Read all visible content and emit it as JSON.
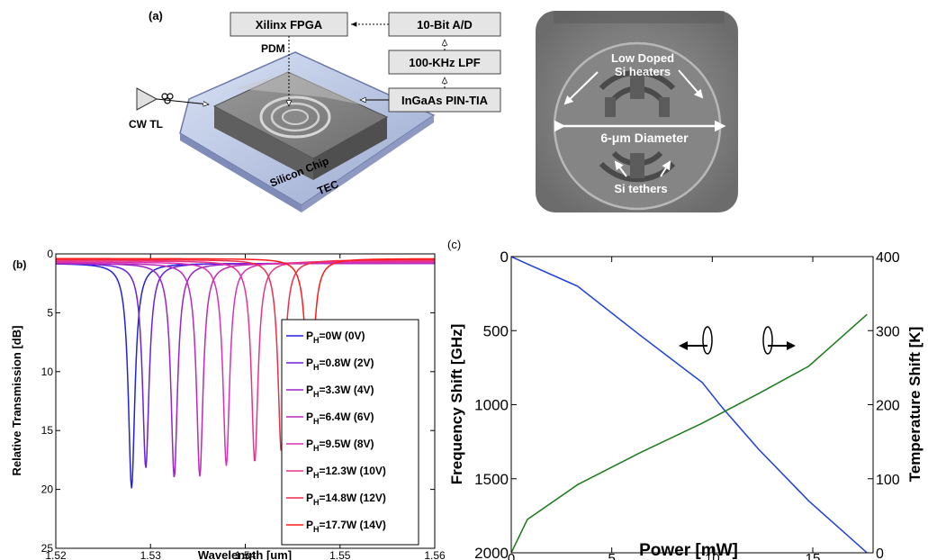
{
  "panel_a": {
    "label": "(a)",
    "boxes": {
      "fpga": "Xilinx FPGA",
      "adc": "10-Bit A/D",
      "lpf": "100-KHz LPF",
      "pin": "InGaAs PIN-TIA"
    },
    "pdm": "PDM",
    "cw_tl": "CW TL",
    "chip": "Silicon Chip",
    "tec": "TEC",
    "sem": {
      "heaters_line1": "Low Doped",
      "heaters_line2": "Si heaters",
      "diameter": "6-μm Diameter",
      "tethers": "Si tethers"
    }
  },
  "chart_data": [
    {
      "panel": "(b)",
      "type": "line",
      "xlabel": "Wavelength [um]",
      "ylabel": "Relative Transmission [dB]",
      "xlim": [
        1.52,
        1.56
      ],
      "ylim": [
        25,
        0
      ],
      "y_inverted": true,
      "xticks": [
        "1.52",
        "1.53",
        "1.54",
        "1.55",
        "1.56"
      ],
      "yticks": [
        "0",
        "5",
        "10",
        "15",
        "20",
        "25"
      ],
      "legend_position": "lower-right",
      "series": [
        {
          "name": "PH=0W (0V)",
          "label_main": "P",
          "label_sub": "H",
          "label_rest": "=0W (0V)",
          "color": "#2222dd",
          "center": 1.528,
          "depth": 19.9,
          "baseline": 0.8
        },
        {
          "name": "PH=0.8W (2V)",
          "label_main": "P",
          "label_sub": "H",
          "label_rest": "=0.8W (2V)",
          "color": "#6a1fe0",
          "center": 1.5295,
          "depth": 18.2,
          "baseline": 0.8
        },
        {
          "name": "PH=3.3W (4V)",
          "label_main": "P",
          "label_sub": "H",
          "label_rest": "=3.3W (4V)",
          "color": "#9922c8",
          "center": 1.5325,
          "depth": 19.0,
          "baseline": 0.8
        },
        {
          "name": "PH=6.4W (6V)",
          "label_main": "P",
          "label_sub": "H",
          "label_rest": "=6.4W (6V)",
          "color": "#bb2ab8",
          "center": 1.5352,
          "depth": 18.9,
          "baseline": 0.8
        },
        {
          "name": "PH=9.5W (8V)",
          "label_main": "P",
          "label_sub": "H",
          "label_rest": "=9.5W (8V)",
          "color": "#d633b4",
          "center": 1.538,
          "depth": 18.0,
          "baseline": 0.7
        },
        {
          "name": "PH=12.3W (10V)",
          "label_main": "P",
          "label_sub": "H",
          "label_rest": "=12.3W (10V)",
          "color": "#e8338c",
          "center": 1.541,
          "depth": 17.7,
          "baseline": 0.6
        },
        {
          "name": "PH=14.8W (12V)",
          "label_main": "P",
          "label_sub": "H",
          "label_rest": "=14.8W (12V)",
          "color": "#f02c4a",
          "center": 1.5438,
          "depth": 16.8,
          "baseline": 0.5
        },
        {
          "name": "PH=17.7W (14V)",
          "label_main": "P",
          "label_sub": "H",
          "label_rest": "=17.7W (14V)",
          "color": "#ff1a1a",
          "center": 1.5468,
          "depth": 16.3,
          "baseline": 0.4
        }
      ]
    },
    {
      "panel": "(c)",
      "type": "line",
      "xlabel": "Power [mW]",
      "ylabel_left": "Frequency Shift [GHz]",
      "ylabel_right": "Temperature Shift [K]",
      "xlim": [
        0,
        18
      ],
      "ylim_left": [
        2000,
        0
      ],
      "ylim_right": [
        0,
        400
      ],
      "xticks": [
        "0",
        "5",
        "10",
        "15"
      ],
      "yticks_left": [
        "0",
        "500",
        "1000",
        "1500",
        "2000"
      ],
      "yticks_right": [
        "0",
        "100",
        "200",
        "300",
        "400"
      ],
      "series": [
        {
          "axis": "left",
          "color": "#1f3fe0",
          "x": [
            0,
            0.8,
            3.3,
            6.4,
            9.5,
            10.5,
            12.3,
            14.8,
            17.7
          ],
          "y": [
            0,
            50,
            200,
            530,
            850,
            1020,
            1300,
            1650,
            2000
          ]
        },
        {
          "axis": "right",
          "color": "#1a7a1a",
          "x": [
            0,
            0.8,
            3.3,
            6.4,
            9.5,
            12.3,
            14.8,
            17.7
          ],
          "y": [
            0,
            45,
            92,
            135,
            175,
            215,
            252,
            322
          ]
        }
      ]
    }
  ]
}
